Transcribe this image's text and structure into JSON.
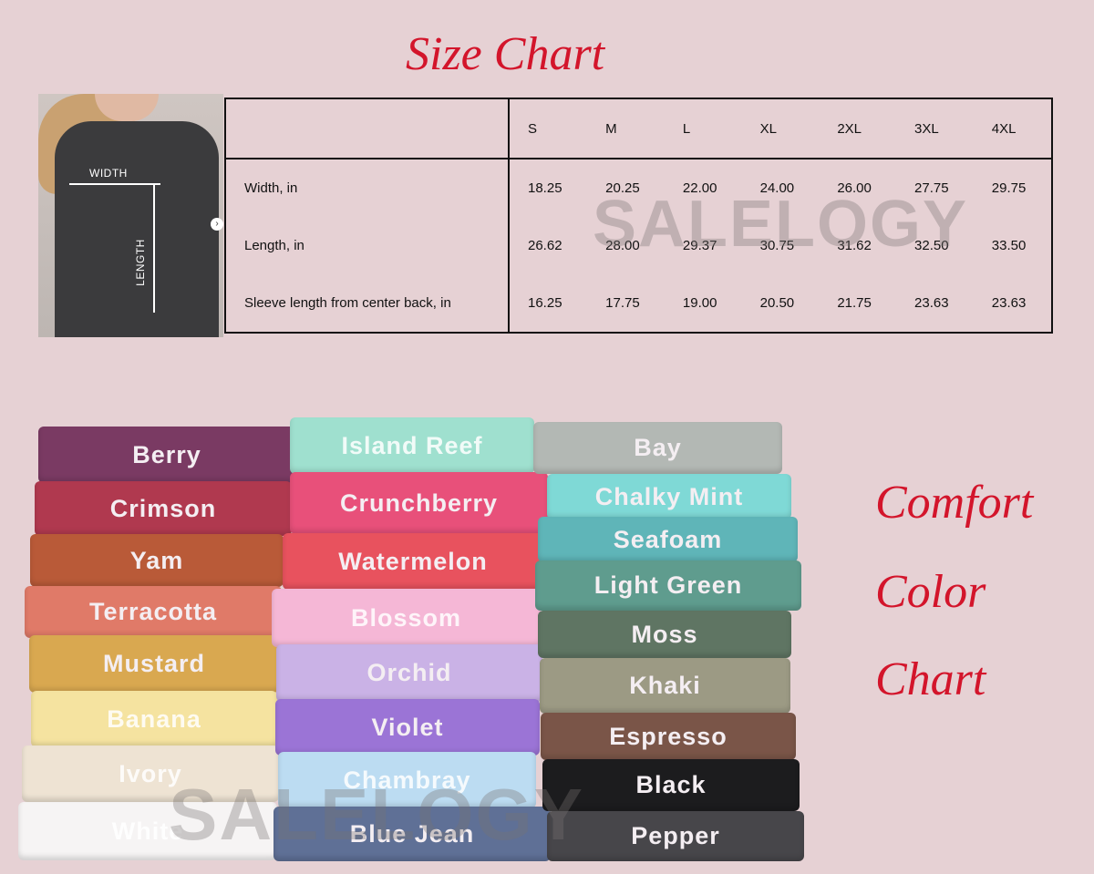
{
  "size_chart": {
    "title": "Size Chart",
    "photo": {
      "width_label": "WIDTH",
      "length_label": "LENGTH"
    },
    "sizes": [
      "S",
      "M",
      "L",
      "XL",
      "2XL",
      "3XL",
      "4XL"
    ],
    "rows": [
      {
        "label": "Width, in",
        "values": [
          "18.25",
          "20.25",
          "22.00",
          "24.00",
          "26.00",
          "27.75",
          "29.75"
        ]
      },
      {
        "label": "Length, in",
        "values": [
          "26.62",
          "28.00",
          "29.37",
          "30.75",
          "31.62",
          "32.50",
          "33.50"
        ]
      },
      {
        "label": "Sleeve length from center back, in",
        "values": [
          "16.25",
          "17.75",
          "19.00",
          "20.50",
          "21.75",
          "23.63",
          "23.63"
        ]
      }
    ]
  },
  "watermark": "SALELOGY",
  "color_chart": {
    "title_lines": [
      "Comfort",
      "Color",
      "Chart"
    ],
    "columns": [
      [
        {
          "name": "Berry",
          "color": "#7a3a63"
        },
        {
          "name": "Crimson",
          "color": "#b0394f"
        },
        {
          "name": "Yam",
          "color": "#b95a38"
        },
        {
          "name": "Terracotta",
          "color": "#e07a68"
        },
        {
          "name": "Mustard",
          "color": "#d9a850"
        },
        {
          "name": "Banana",
          "color": "#f5e3a0"
        },
        {
          "name": "Ivory",
          "color": "#eee3d3"
        },
        {
          "name": "White",
          "color": "#f6f4f4"
        }
      ],
      [
        {
          "name": "Island Reef",
          "color": "#9fe0cf"
        },
        {
          "name": "Crunchberry",
          "color": "#e8507a"
        },
        {
          "name": "Watermelon",
          "color": "#e8525e"
        },
        {
          "name": "Blossom",
          "color": "#f5b7d6"
        },
        {
          "name": "Orchid",
          "color": "#cab2e6"
        },
        {
          "name": "Violet",
          "color": "#9b74d6"
        },
        {
          "name": "Chambray",
          "color": "#bcdcf2"
        },
        {
          "name": "Blue Jean",
          "color": "#5f7096"
        }
      ],
      [
        {
          "name": "Bay",
          "color": "#b3b8b4"
        },
        {
          "name": "Chalky Mint",
          "color": "#7fd9d6"
        },
        {
          "name": "Seafoam",
          "color": "#5fb5b8"
        },
        {
          "name": "Light Green",
          "color": "#5f9c8e"
        },
        {
          "name": "Moss",
          "color": "#5f7563"
        },
        {
          "name": "Khaki",
          "color": "#9c9a84"
        },
        {
          "name": "Espresso",
          "color": "#7a5548"
        },
        {
          "name": "Black",
          "color": "#1c1c1e"
        },
        {
          "name": "Pepper",
          "color": "#47464a"
        }
      ]
    ]
  }
}
